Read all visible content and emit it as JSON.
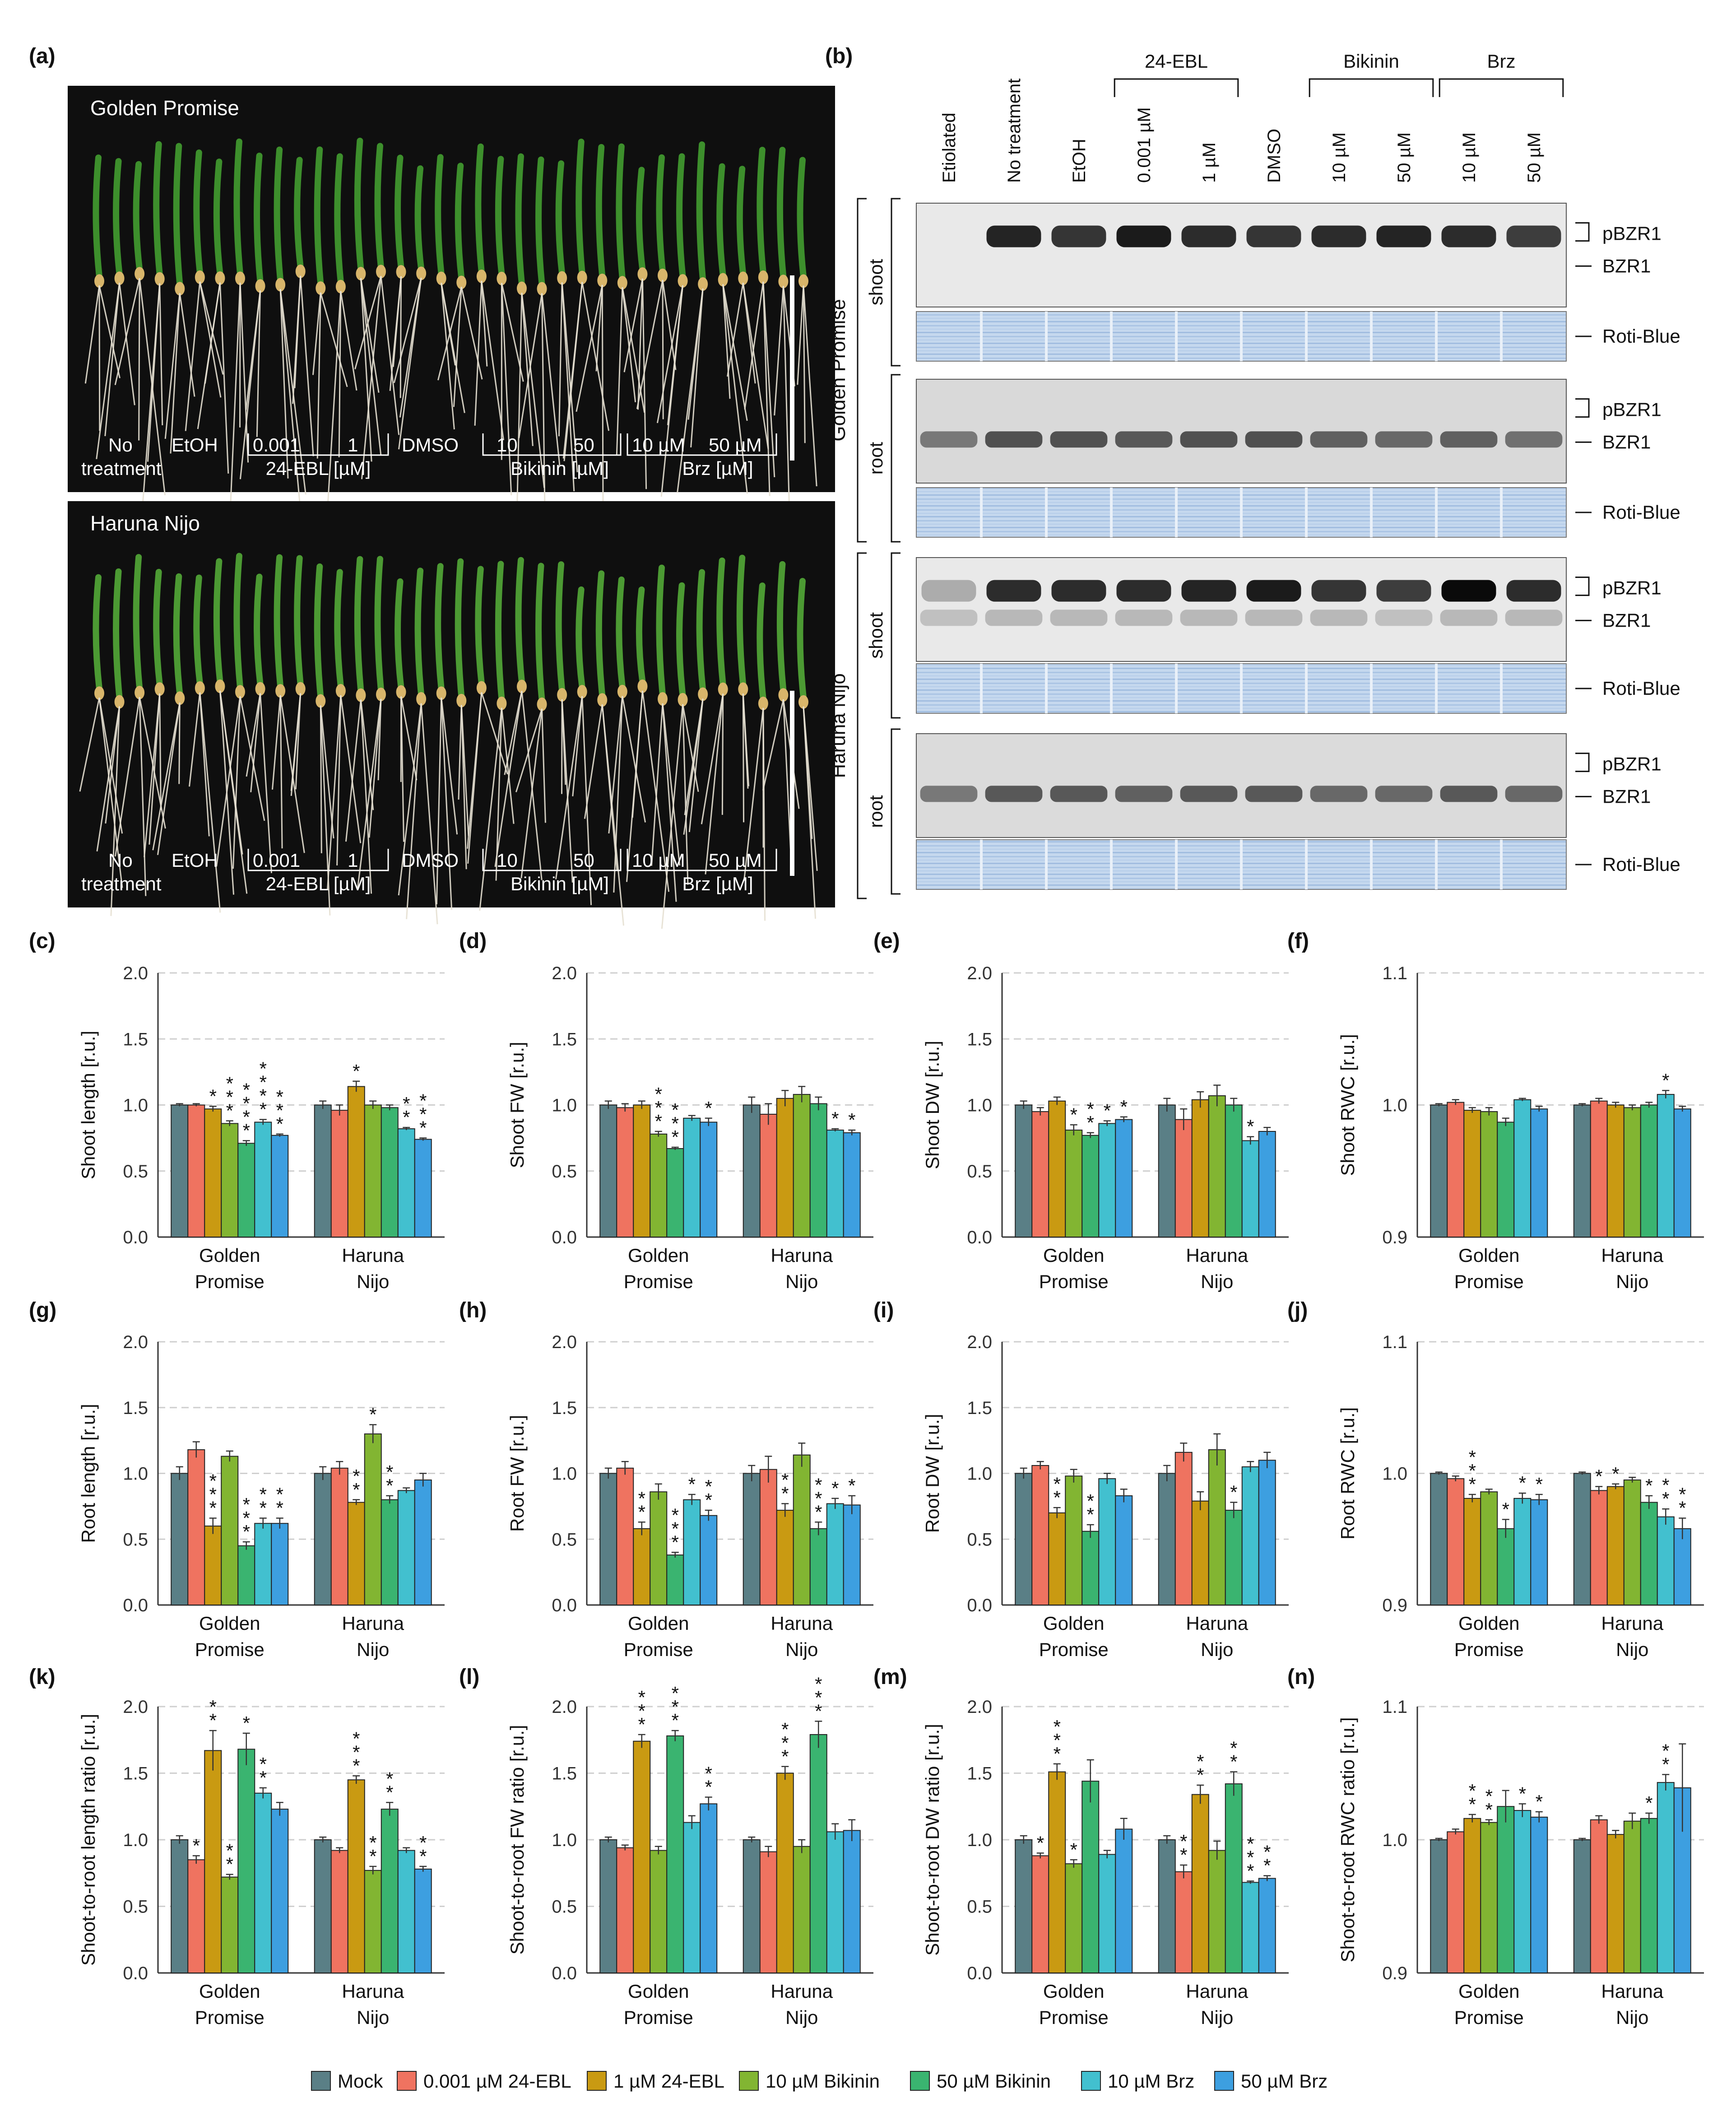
{
  "panel_labels": [
    "(a)",
    "(b)",
    "(c)",
    "(d)",
    "(e)",
    "(f)",
    "(g)",
    "(h)",
    "(i)",
    "(j)",
    "(k)",
    "(l)",
    "(m)",
    "(n)"
  ],
  "panel_a": {
    "photos": [
      {
        "cultivar": "Golden Promise",
        "plant_tone": "#3d8f2c",
        "labels": {
          "no": "No",
          "treatment": "treatment",
          "etoh": "EtOH",
          "ebl_low": "0.001",
          "ebl_high": "1",
          "ebl_unit": "24-EBL [µM]",
          "dmso": "DMSO",
          "bik_low": "10",
          "bik_high": "50",
          "bik_unit": "Bikinin [µM]",
          "brz_low": "10 µM",
          "brz_high": "50 µM",
          "brz_unit": "Brz [µM]"
        }
      },
      {
        "cultivar": "Haruna Nijo",
        "plant_tone": "#4c9a33",
        "labels": {
          "no": "No",
          "treatment": "treatment",
          "etoh": "EtOH",
          "ebl_low": "0.001",
          "ebl_high": "1",
          "ebl_unit": "24-EBL [µM]",
          "dmso": "DMSO",
          "bik_low": "10",
          "bik_high": "50",
          "bik_unit": "Bikinin [µM]",
          "brz_low": "10 µM",
          "brz_high": "50 µM",
          "brz_unit": "Brz [µM]"
        }
      }
    ]
  },
  "panel_b": {
    "lanes": [
      "Etiolated",
      "No treatment",
      "EtOH",
      "0.001 µM",
      "1 µM",
      "DMSO",
      "10 µM",
      "50 µM",
      "10 µM",
      "50 µM"
    ],
    "groups": [
      {
        "label": "24-EBL",
        "from": 3,
        "to": 4
      },
      {
        "label": "Bikinin",
        "from": 6,
        "to": 7
      },
      {
        "label": "Brz",
        "from": 8,
        "to": 9
      }
    ],
    "cultivars": [
      "Golden Promise",
      "Haruna Nijo"
    ],
    "tissues": [
      "shoot",
      "root",
      "shoot",
      "root"
    ],
    "band_labels": {
      "pbzr1": "pBZR1",
      "bzr1": "BZR1",
      "stain": "Roti-Blue"
    },
    "blots": [
      {
        "pbzr1": [
          0,
          0.85,
          0.75,
          0.9,
          0.8,
          0.75,
          0.8,
          0.85,
          0.8,
          0.7
        ],
        "bzr1": [
          0,
          0,
          0,
          0,
          0,
          0,
          0,
          0,
          0,
          0
        ],
        "bg": 0.18
      },
      {
        "pbzr1": [
          0,
          0,
          0,
          0,
          0,
          0,
          0,
          0,
          0,
          0
        ],
        "bzr1": [
          0.5,
          0.75,
          0.75,
          0.7,
          0.75,
          0.75,
          0.65,
          0.6,
          0.65,
          0.55
        ],
        "bg": 0.32
      },
      {
        "pbzr1": [
          0.05,
          0.8,
          0.8,
          0.8,
          0.85,
          0.9,
          0.75,
          0.7,
          1.0,
          0.8
        ],
        "bzr1": [
          0.05,
          0.1,
          0.1,
          0.1,
          0.1,
          0.1,
          0.1,
          0.05,
          0.1,
          0.1
        ],
        "bg": 0.18
      },
      {
        "pbzr1": [
          0,
          0,
          0,
          0,
          0,
          0,
          0,
          0,
          0,
          0
        ],
        "bzr1": [
          0.5,
          0.7,
          0.7,
          0.65,
          0.7,
          0.7,
          0.6,
          0.6,
          0.7,
          0.6
        ],
        "bg": 0.3
      }
    ]
  },
  "legend": [
    {
      "label": "Mock",
      "color": "#5a7f86"
    },
    {
      "label": "0.001 µM 24-EBL",
      "color": "#ef7360"
    },
    {
      "label": "1 µM 24-EBL",
      "color": "#c99a12"
    },
    {
      "label": "10 µM Bikinin",
      "color": "#82b532"
    },
    {
      "label": "50 µM Bikinin",
      "color": "#3ab470"
    },
    {
      "label": "10 µM Brz",
      "color": "#42c0cf"
    },
    {
      "label": "50 µM Brz",
      "color": "#3d9fe0"
    }
  ],
  "chart_data": [
    {
      "id": "c",
      "type": "bar",
      "ylabel": "Shoot length [r.u.]",
      "ylim": [
        0,
        2
      ],
      "yticks": [
        "0.0",
        "0.5",
        "1.0",
        "1.5",
        "2.0"
      ],
      "categories": [
        "Golden Promise",
        "Haruna Nijo"
      ],
      "values": [
        [
          1.0,
          1.0,
          0.97,
          0.86,
          0.71,
          0.87,
          0.77
        ],
        [
          1.0,
          0.96,
          1.14,
          1.0,
          0.98,
          0.82,
          0.74
        ]
      ],
      "errors": [
        [
          0.01,
          0.01,
          0.02,
          0.02,
          0.02,
          0.02,
          0.01
        ],
        [
          0.03,
          0.04,
          0.04,
          0.03,
          0.02,
          0.01,
          0.01
        ]
      ],
      "stars": [
        [
          "",
          "",
          "*",
          "***",
          "****",
          "****",
          "***"
        ],
        [
          "",
          "",
          "*",
          "",
          "",
          "**",
          "***"
        ]
      ]
    },
    {
      "id": "d",
      "type": "bar",
      "ylabel": "Shoot FW [r.u.]",
      "ylim": [
        0,
        2
      ],
      "yticks": [
        "0.0",
        "0.5",
        "1.0",
        "1.5",
        "2.0"
      ],
      "categories": [
        "Golden Promise",
        "Haruna Nijo"
      ],
      "values": [
        [
          1.0,
          0.98,
          1.0,
          0.78,
          0.67,
          0.9,
          0.87
        ],
        [
          1.0,
          0.93,
          1.05,
          1.08,
          1.01,
          0.81,
          0.79
        ]
      ],
      "errors": [
        [
          0.03,
          0.03,
          0.03,
          0.02,
          0.01,
          0.02,
          0.03
        ],
        [
          0.06,
          0.08,
          0.06,
          0.06,
          0.05,
          0.01,
          0.02
        ]
      ],
      "stars": [
        [
          "",
          "",
          "",
          "***",
          "***",
          "",
          "*"
        ],
        [
          "",
          "",
          "",
          "",
          "",
          "*",
          "*"
        ]
      ]
    },
    {
      "id": "e",
      "type": "bar",
      "ylabel": "Shoot DW [r.u.]",
      "ylim": [
        0,
        2
      ],
      "yticks": [
        "0.0",
        "0.5",
        "1.0",
        "1.5",
        "2.0"
      ],
      "categories": [
        "Golden Promise",
        "Haruna Nijo"
      ],
      "values": [
        [
          1.0,
          0.95,
          1.03,
          0.81,
          0.77,
          0.86,
          0.89
        ],
        [
          1.0,
          0.89,
          1.04,
          1.07,
          1.0,
          0.73,
          0.8
        ]
      ],
      "errors": [
        [
          0.03,
          0.03,
          0.03,
          0.04,
          0.02,
          0.02,
          0.02
        ],
        [
          0.05,
          0.08,
          0.06,
          0.08,
          0.05,
          0.03,
          0.03
        ]
      ],
      "stars": [
        [
          "",
          "",
          "",
          "*",
          "**",
          "*",
          "*"
        ],
        [
          "",
          "",
          "",
          "",
          "",
          "*",
          ""
        ]
      ]
    },
    {
      "id": "f",
      "type": "bar",
      "ylabel": "Shoot RWC [r.u.]",
      "ylim": [
        0.9,
        1.1
      ],
      "yticks": [
        "0.9",
        "1.0",
        "1.1"
      ],
      "categories": [
        "Golden Promise",
        "Haruna Nijo"
      ],
      "values": [
        [
          1.0,
          1.002,
          0.996,
          0.995,
          0.987,
          1.004,
          0.997
        ],
        [
          1.0,
          1.003,
          1.0,
          0.998,
          1.0,
          1.008,
          0.997
        ]
      ],
      "errors": [
        [
          0.001,
          0.002,
          0.002,
          0.003,
          0.003,
          0.001,
          0.002
        ],
        [
          0.001,
          0.002,
          0.002,
          0.002,
          0.002,
          0.003,
          0.002
        ]
      ],
      "stars": [
        [
          "",
          "",
          "",
          "",
          "",
          "",
          ""
        ],
        [
          "",
          "",
          "",
          "",
          "",
          "*",
          ""
        ]
      ]
    },
    {
      "id": "g",
      "type": "bar",
      "ylabel": "Root length [r.u.]",
      "ylim": [
        0,
        2
      ],
      "yticks": [
        "0.0",
        "0.5",
        "1.0",
        "1.5",
        "2.0"
      ],
      "categories": [
        "Golden Promise",
        "Haruna Nijo"
      ],
      "values": [
        [
          1.0,
          1.18,
          0.6,
          1.13,
          0.45,
          0.62,
          0.62
        ],
        [
          1.0,
          1.04,
          0.78,
          1.3,
          0.8,
          0.87,
          0.95
        ]
      ],
      "errors": [
        [
          0.05,
          0.06,
          0.06,
          0.04,
          0.03,
          0.04,
          0.04
        ],
        [
          0.05,
          0.05,
          0.02,
          0.07,
          0.03,
          0.02,
          0.05
        ]
      ],
      "stars": [
        [
          "",
          "",
          "***",
          "",
          "***",
          "**",
          "**"
        ],
        [
          "",
          "",
          "**",
          "*",
          "**",
          "",
          ""
        ]
      ]
    },
    {
      "id": "h",
      "type": "bar",
      "ylabel": "Root FW [r.u.]",
      "ylim": [
        0,
        2
      ],
      "yticks": [
        "0.0",
        "0.5",
        "1.0",
        "1.5",
        "2.0"
      ],
      "categories": [
        "Golden Promise",
        "Haruna Nijo"
      ],
      "values": [
        [
          1.0,
          1.04,
          0.58,
          0.86,
          0.38,
          0.8,
          0.68
        ],
        [
          1.0,
          1.03,
          0.72,
          1.14,
          0.58,
          0.77,
          0.76
        ]
      ],
      "errors": [
        [
          0.04,
          0.05,
          0.05,
          0.06,
          0.02,
          0.04,
          0.04
        ],
        [
          0.06,
          0.1,
          0.05,
          0.09,
          0.05,
          0.04,
          0.07
        ]
      ],
      "stars": [
        [
          "",
          "",
          "**",
          "",
          "***",
          "*",
          "**"
        ],
        [
          "",
          "",
          "**",
          "",
          "***",
          "*",
          "*"
        ]
      ]
    },
    {
      "id": "i",
      "type": "bar",
      "ylabel": "Root DW [r.u.]",
      "ylim": [
        0,
        2
      ],
      "yticks": [
        "0.0",
        "0.5",
        "1.0",
        "1.5",
        "2.0"
      ],
      "categories": [
        "Golden Promise",
        "Haruna Nijo"
      ],
      "values": [
        [
          1.0,
          1.06,
          0.7,
          0.98,
          0.56,
          0.96,
          0.83
        ],
        [
          1.0,
          1.16,
          0.79,
          1.18,
          0.72,
          1.05,
          1.1
        ]
      ],
      "errors": [
        [
          0.04,
          0.03,
          0.04,
          0.05,
          0.05,
          0.04,
          0.05
        ],
        [
          0.06,
          0.07,
          0.07,
          0.12,
          0.06,
          0.04,
          0.06
        ]
      ],
      "stars": [
        [
          "",
          "",
          "**",
          "",
          "**",
          "",
          ""
        ],
        [
          "",
          "",
          "",
          "",
          "*",
          "",
          ""
        ]
      ]
    },
    {
      "id": "j",
      "type": "bar",
      "ylabel": "Root RWC [r.u.]",
      "ylim": [
        0.9,
        1.1
      ],
      "yticks": [
        "0.9",
        "1.0",
        "1.1"
      ],
      "categories": [
        "Golden Promise",
        "Haruna Nijo"
      ],
      "values": [
        [
          1.0,
          0.996,
          0.981,
          0.986,
          0.958,
          0.981,
          0.98
        ],
        [
          1.0,
          0.987,
          0.99,
          0.995,
          0.978,
          0.967,
          0.958
        ]
      ],
      "errors": [
        [
          0.001,
          0.002,
          0.003,
          0.002,
          0.007,
          0.004,
          0.004
        ],
        [
          0.001,
          0.003,
          0.002,
          0.002,
          0.005,
          0.006,
          0.008
        ]
      ],
      "stars": [
        [
          "",
          "",
          "***",
          "",
          "*",
          "*",
          "*"
        ],
        [
          "",
          "*",
          "*",
          "",
          "*",
          "**",
          "**"
        ]
      ]
    },
    {
      "id": "k",
      "type": "bar",
      "ylabel": "Shoot-to-root length ratio [r.u.]",
      "ylim": [
        0,
        2
      ],
      "yticks": [
        "0.0",
        "0.5",
        "1.0",
        "1.5",
        "2.0"
      ],
      "categories": [
        "Golden Promise",
        "Haruna Nijo"
      ],
      "values": [
        [
          1.0,
          0.85,
          1.67,
          0.72,
          1.68,
          1.35,
          1.23
        ],
        [
          1.0,
          0.92,
          1.45,
          0.77,
          1.23,
          0.92,
          0.78
        ]
      ],
      "errors": [
        [
          0.03,
          0.03,
          0.15,
          0.02,
          0.12,
          0.04,
          0.05
        ],
        [
          0.02,
          0.02,
          0.03,
          0.03,
          0.05,
          0.02,
          0.02
        ]
      ],
      "stars": [
        [
          "",
          "*",
          "**",
          "**",
          "*",
          "**",
          ""
        ],
        [
          "",
          "",
          "***",
          "**",
          "**",
          "",
          "**"
        ]
      ]
    },
    {
      "id": "l",
      "type": "bar",
      "ylabel": "Shoot-to-root FW ratio [r.u.]",
      "ylim": [
        0,
        2
      ],
      "yticks": [
        "0.0",
        "0.5",
        "1.0",
        "1.5",
        "2.0"
      ],
      "categories": [
        "Golden Promise",
        "Haruna Nijo"
      ],
      "values": [
        [
          1.0,
          0.94,
          1.74,
          0.92,
          1.78,
          1.13,
          1.27
        ],
        [
          1.0,
          0.91,
          1.5,
          0.95,
          1.79,
          1.06,
          1.07
        ]
      ],
      "errors": [
        [
          0.02,
          0.02,
          0.05,
          0.03,
          0.04,
          0.05,
          0.05
        ],
        [
          0.02,
          0.04,
          0.05,
          0.05,
          0.1,
          0.06,
          0.08
        ]
      ],
      "stars": [
        [
          "",
          "",
          "***",
          "",
          "***",
          "",
          "**"
        ],
        [
          "",
          "",
          "***",
          "",
          "***",
          "",
          ""
        ]
      ]
    },
    {
      "id": "m",
      "type": "bar",
      "ylabel": "Shoot-to-root DW ratio [r.u.]",
      "ylim": [
        0,
        2
      ],
      "yticks": [
        "0.0",
        "0.5",
        "1.0",
        "1.5",
        "2.0"
      ],
      "categories": [
        "Golden Promise",
        "Haruna Nijo"
      ],
      "values": [
        [
          1.0,
          0.88,
          1.51,
          0.82,
          1.44,
          0.89,
          1.08
        ],
        [
          1.0,
          0.76,
          1.34,
          0.92,
          1.42,
          0.68,
          0.71
        ]
      ],
      "errors": [
        [
          0.03,
          0.02,
          0.06,
          0.03,
          0.16,
          0.03,
          0.08
        ],
        [
          0.03,
          0.05,
          0.07,
          0.07,
          0.09,
          0.01,
          0.02
        ]
      ],
      "stars": [
        [
          "",
          "*",
          "***",
          "*",
          "",
          "",
          ""
        ],
        [
          "",
          "**",
          "**",
          "",
          "**",
          "***",
          "**"
        ]
      ]
    },
    {
      "id": "n",
      "type": "bar",
      "ylabel": "Shoot-to-root RWC ratio [r.u.]",
      "ylim": [
        0.9,
        1.1
      ],
      "yticks": [
        "0.9",
        "1.0",
        "1.1"
      ],
      "categories": [
        "Golden Promise",
        "Haruna Nijo"
      ],
      "values": [
        [
          1.0,
          1.006,
          1.016,
          1.013,
          1.025,
          1.022,
          1.017
        ],
        [
          1.0,
          1.015,
          1.004,
          1.014,
          1.016,
          1.043,
          1.039
        ]
      ],
      "errors": [
        [
          0.001,
          0.002,
          0.003,
          0.002,
          0.012,
          0.005,
          0.004
        ],
        [
          0.001,
          0.003,
          0.003,
          0.006,
          0.004,
          0.006,
          0.033
        ]
      ],
      "stars": [
        [
          "",
          "",
          "**",
          "**",
          "",
          "*",
          "*"
        ],
        [
          "",
          "",
          "",
          "",
          "*",
          "**",
          ""
        ]
      ]
    }
  ]
}
